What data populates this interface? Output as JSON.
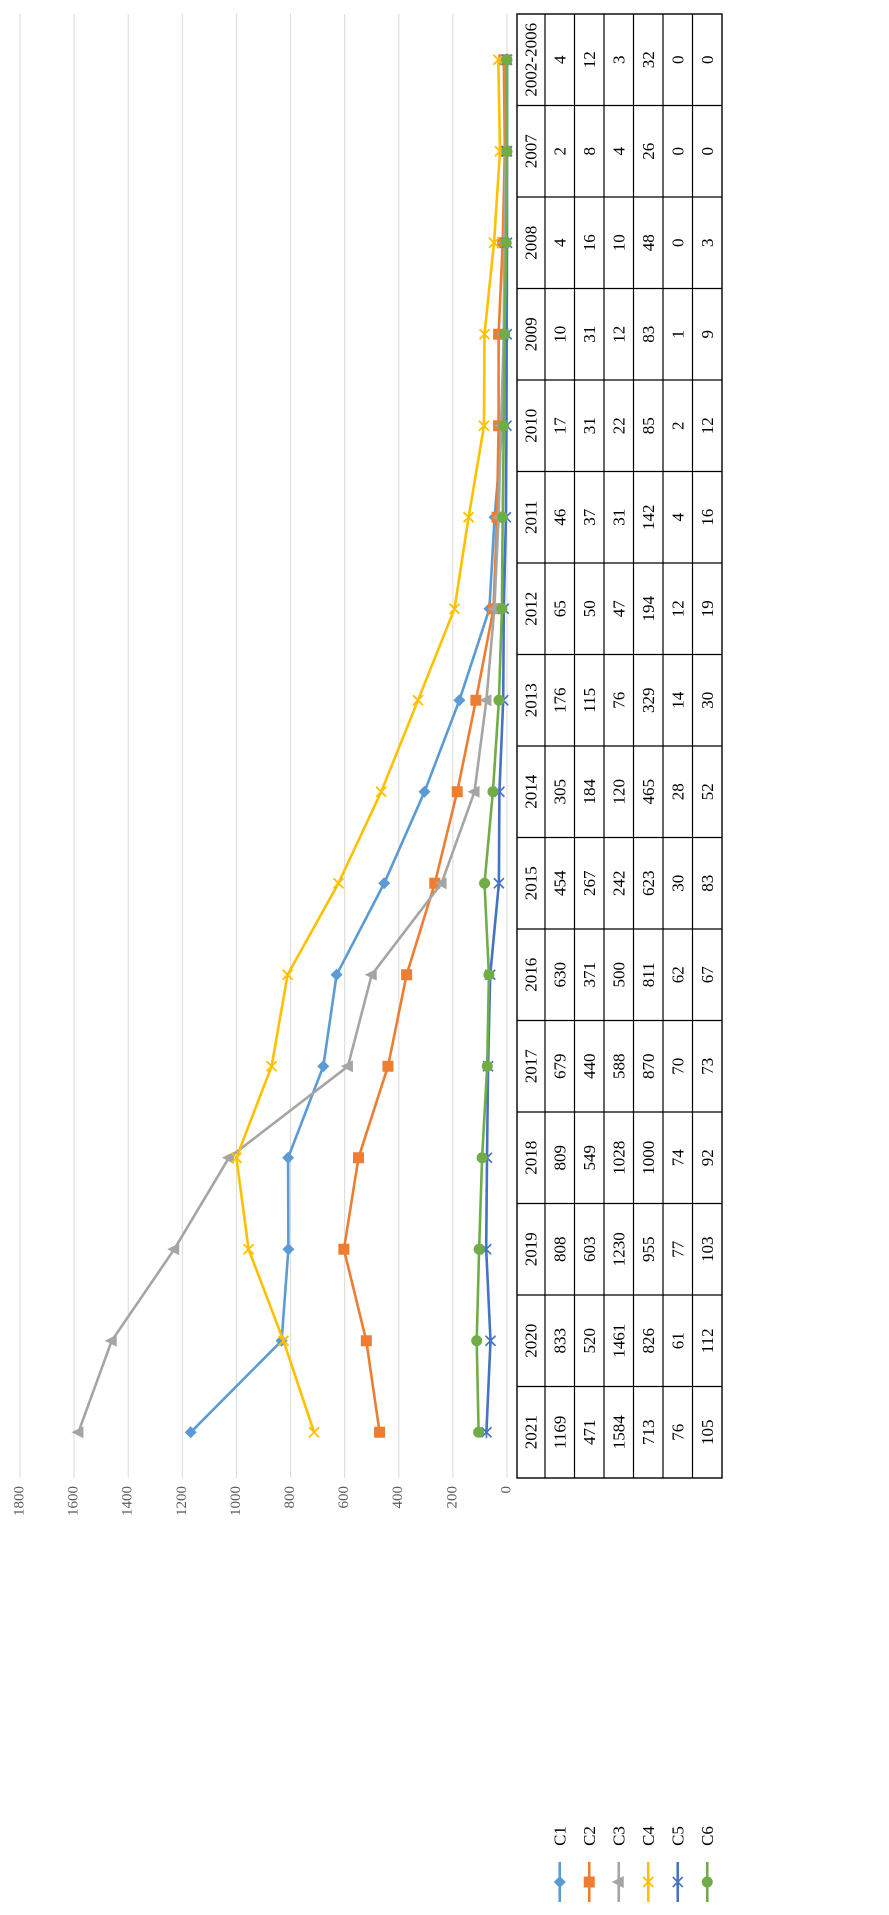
{
  "chart_data": {
    "type": "line",
    "categories": [
      "2002-2006",
      "2007",
      "2008",
      "2009",
      "2010",
      "2011",
      "2012",
      "2013",
      "2014",
      "2015",
      "2016",
      "2017",
      "2018",
      "2019",
      "2020",
      "2021"
    ],
    "series": [
      {
        "name": "C1",
        "color": "#5B9BD5",
        "marker": "diamond",
        "values": [
          4,
          2,
          4,
          10,
          17,
          46,
          65,
          176,
          305,
          454,
          630,
          679,
          809,
          808,
          833,
          1169
        ]
      },
      {
        "name": "C2",
        "color": "#ED7D31",
        "marker": "square",
        "values": [
          12,
          8,
          16,
          31,
          31,
          37,
          50,
          115,
          184,
          267,
          371,
          440,
          549,
          603,
          520,
          471
        ]
      },
      {
        "name": "C3",
        "color": "#A5A5A5",
        "marker": "triangle",
        "values": [
          3,
          4,
          10,
          12,
          22,
          31,
          47,
          76,
          120,
          242,
          500,
          588,
          1028,
          1230,
          1461,
          1584
        ]
      },
      {
        "name": "C4",
        "color": "#FFC000",
        "marker": "x",
        "values": [
          32,
          26,
          48,
          83,
          85,
          142,
          194,
          329,
          465,
          623,
          811,
          870,
          1000,
          955,
          826,
          713
        ]
      },
      {
        "name": "C5",
        "color": "#4472C4",
        "marker": "star",
        "values": [
          0,
          0,
          0,
          1,
          2,
          4,
          12,
          14,
          28,
          30,
          62,
          70,
          74,
          77,
          61,
          76
        ]
      },
      {
        "name": "C6",
        "color": "#70AD47",
        "marker": "circle",
        "values": [
          0,
          0,
          3,
          9,
          12,
          16,
          19,
          30,
          52,
          83,
          67,
          73,
          92,
          103,
          112,
          105
        ]
      }
    ],
    "ylim": [
      0,
      1800
    ],
    "yticks": [
      "0",
      "200",
      "400",
      "600",
      "800",
      "1000",
      "1200",
      "1400",
      "1600",
      "1800"
    ],
    "grid": true,
    "legend_placement": "data-table",
    "orientation": "rotated-90-clockwise"
  }
}
